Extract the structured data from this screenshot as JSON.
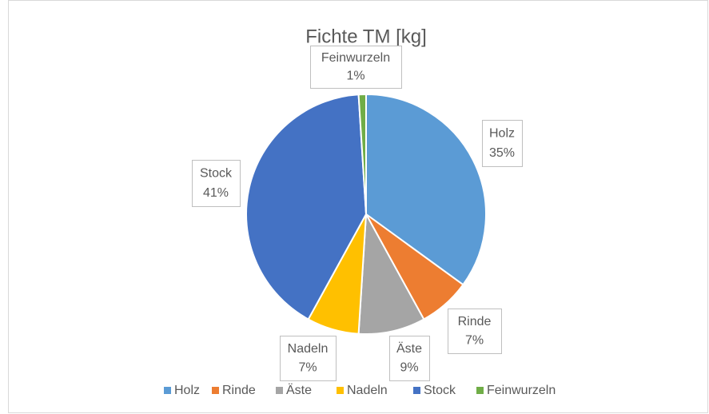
{
  "chart_data": {
    "type": "pie",
    "title": "Fichte TM [kg]",
    "categories": [
      "Holz",
      "Rinde",
      "Äste",
      "Nadeln",
      "Stock",
      "Feinwurzeln"
    ],
    "values": [
      35,
      7,
      9,
      7,
      41,
      1
    ],
    "value_labels": [
      "35%",
      "7%",
      "9%",
      "7%",
      "41%",
      "1%"
    ],
    "colors": [
      "#5b9bd5",
      "#ed7d31",
      "#a5a5a5",
      "#ffc000",
      "#4472c4",
      "#70ad47"
    ],
    "legend": "bottom"
  }
}
